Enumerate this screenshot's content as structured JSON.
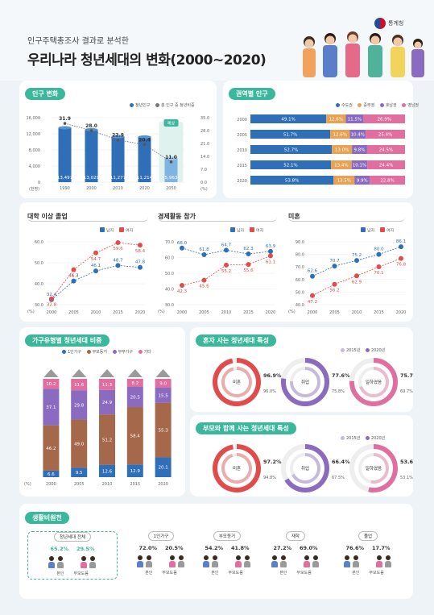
{
  "header": {
    "subtitle": "인구주택총조사 결과로 분석한",
    "title": "우리나라 청년세대의 변화(2000~2020)",
    "org": "통계청"
  },
  "colors": {
    "blue": "#2e6fb8",
    "light_blue": "#7fb3e0",
    "teal": "#3bb89b",
    "red": "#e24b4b",
    "purple": "#8a6bbf",
    "pink": "#e06fa0",
    "brown": "#a6684a",
    "orange": "#e8a254"
  },
  "sections": {
    "population": "인구 변화",
    "regional": "권역별 인구",
    "college": "대학 이상 졸업",
    "econ": "경제활동 참가",
    "married": "미혼",
    "household": "가구유형별 청년세대 비중",
    "alone": "혼자 사는 청년세대 특성",
    "with_parents": "부모와 함께 사는 청년세대 특성",
    "living": "생활비원천"
  },
  "legends": {
    "population": [
      "청년인구",
      "총 인구 중 청년비중"
    ],
    "regional": [
      "수도권",
      "중부권",
      "호남권",
      "영남권"
    ],
    "gender": [
      "남자",
      "여자"
    ],
    "household": [
      "1인가구",
      "부모동거",
      "부부가구",
      "기타"
    ],
    "years_alone": [
      "2015년",
      "2020년"
    ]
  },
  "chart_data": [
    {
      "id": "population",
      "type": "bar",
      "title": "인구 변화",
      "categories": [
        "1990",
        "2000",
        "2010",
        "2020",
        "2050"
      ],
      "unit_left": "(천명)",
      "unit_right": "(%)",
      "series": [
        {
          "name": "청년인구",
          "values": [
            13497,
            13029,
            11277,
            11214,
            5963
          ]
        },
        {
          "name": "총 인구 중 청년비중",
          "values": [
            31.9,
            28.0,
            22.9,
            20.4,
            11.0
          ]
        }
      ],
      "bar_labels": [
        "13,497",
        "13,029",
        "11,277",
        "11,214",
        "5,963"
      ],
      "annotation": "예상",
      "ylim_left": [
        0,
        16000
      ],
      "yticks_left": [
        "0",
        "4,000",
        "8,000",
        "12,000",
        "16,000"
      ],
      "ylim_right": [
        0,
        35
      ],
      "yticks_right": [
        "0.0",
        "7.0",
        "14.0",
        "21.0",
        "28.0",
        "35.0"
      ]
    },
    {
      "id": "regional",
      "type": "bar",
      "title": "권역별 인구",
      "categories": [
        "2000",
        "2005",
        "2010",
        "2015",
        "2020"
      ],
      "series": [
        {
          "name": "수도권",
          "values": [
            49.1,
            51.7,
            52.7,
            52.1,
            53.8
          ]
        },
        {
          "name": "중부권",
          "values": [
            12.6,
            12.6,
            13.0,
            13.4,
            13.5
          ]
        },
        {
          "name": "호남권",
          "values": [
            11.5,
            10.4,
            9.8,
            10.1,
            9.9
          ]
        },
        {
          "name": "영남권",
          "values": [
            26.9,
            25.4,
            24.5,
            24.4,
            22.8
          ]
        }
      ]
    },
    {
      "id": "college",
      "type": "line",
      "title": "대학 이상 졸업",
      "x": [
        "2000",
        "2005",
        "2010",
        "2015",
        "2020"
      ],
      "ylim": [
        30,
        60
      ],
      "yticks": [
        "30.0",
        "40.0",
        "50.0",
        "60.0"
      ],
      "series": [
        {
          "name": "남자",
          "values": [
            32.4,
            41.3,
            46.1,
            48.7,
            47.8
          ]
        },
        {
          "name": "여자",
          "values": [
            32.8,
            46.7,
            54.7,
            59.6,
            58.4
          ]
        }
      ]
    },
    {
      "id": "econ",
      "type": "line",
      "title": "경제활동 참가",
      "x": [
        "2000",
        "2005",
        "2010",
        "2015",
        "2020"
      ],
      "ylim": [
        30,
        70
      ],
      "yticks": [
        "30.0",
        "40.0",
        "50.0",
        "60.0",
        "70.0"
      ],
      "series": [
        {
          "name": "남자",
          "values": [
            66.0,
            61.8,
            64.7,
            62.3,
            63.9
          ]
        },
        {
          "name": "여자",
          "values": [
            42.3,
            45.6,
            55.2,
            55.6,
            61.1
          ]
        }
      ]
    },
    {
      "id": "married",
      "type": "line",
      "title": "미혼",
      "x": [
        "2000",
        "2005",
        "2010",
        "2015",
        "2020"
      ],
      "ylim": [
        40,
        90
      ],
      "yticks": [
        "40.0",
        "50.0",
        "60.0",
        "70.0",
        "80.0",
        "90.0"
      ],
      "series": [
        {
          "name": "남자",
          "values": [
            62.6,
            70.7,
            75.2,
            80.0,
            86.1
          ]
        },
        {
          "name": "여자",
          "values": [
            47.2,
            56.2,
            62.9,
            70.1,
            76.8
          ]
        }
      ]
    },
    {
      "id": "household",
      "type": "bar",
      "title": "가구유형별 청년세대 비중",
      "categories": [
        "2000",
        "2005",
        "2010",
        "2015",
        "2020"
      ],
      "unit": "(%)",
      "series": [
        {
          "name": "1인가구",
          "values": [
            6.6,
            9.5,
            12.6,
            12.9,
            20.1
          ]
        },
        {
          "name": "부모동거",
          "values": [
            46.2,
            49.0,
            51.2,
            58.4,
            55.3
          ]
        },
        {
          "name": "부부가구",
          "values": [
            37.1,
            29.8,
            24.9,
            20.5,
            15.5
          ]
        },
        {
          "name": "기타",
          "values": [
            10.2,
            11.6,
            11.3,
            8.2,
            9.0
          ]
        }
      ]
    }
  ],
  "alone": [
    {
      "label": "미혼",
      "v2020": "96.9%",
      "v2015": "96.0%",
      "f2020": 0.969,
      "f2015": 0.96
    },
    {
      "label": "취업",
      "v2020": "77.6%",
      "v2015": "75.8%",
      "f2020": 0.776,
      "f2015": 0.758
    },
    {
      "label": "일하였음",
      "v2020": "75.7%",
      "v2015": "69.7%",
      "f2020": 0.757,
      "f2015": 0.697
    }
  ],
  "with_parents": [
    {
      "label": "미혼",
      "v2020": "97.2%",
      "v2015": "94.8%",
      "f2020": 0.972,
      "f2015": 0.948
    },
    {
      "label": "취업",
      "v2020": "66.4%",
      "v2015": "67.5%",
      "f2020": 0.664,
      "f2015": 0.675
    },
    {
      "label": "일하였음",
      "v2020": "53.6%",
      "v2015": "53.1%",
      "f2020": 0.536,
      "f2015": 0.531
    }
  ],
  "living": [
    {
      "head": "청년세대 전체",
      "a": "65.2%",
      "b": "29.5%"
    },
    {
      "head": "1인가구",
      "a": "72.0%",
      "b": "20.5%"
    },
    {
      "head": "부모동거",
      "a": "54.2%",
      "b": "41.8%"
    },
    {
      "head": "재학",
      "a": "27.2%",
      "b": "69.0%"
    },
    {
      "head": "졸업",
      "a": "76.6%",
      "b": "17.7%"
    }
  ],
  "living_tags": [
    "본인",
    "부모도움"
  ]
}
